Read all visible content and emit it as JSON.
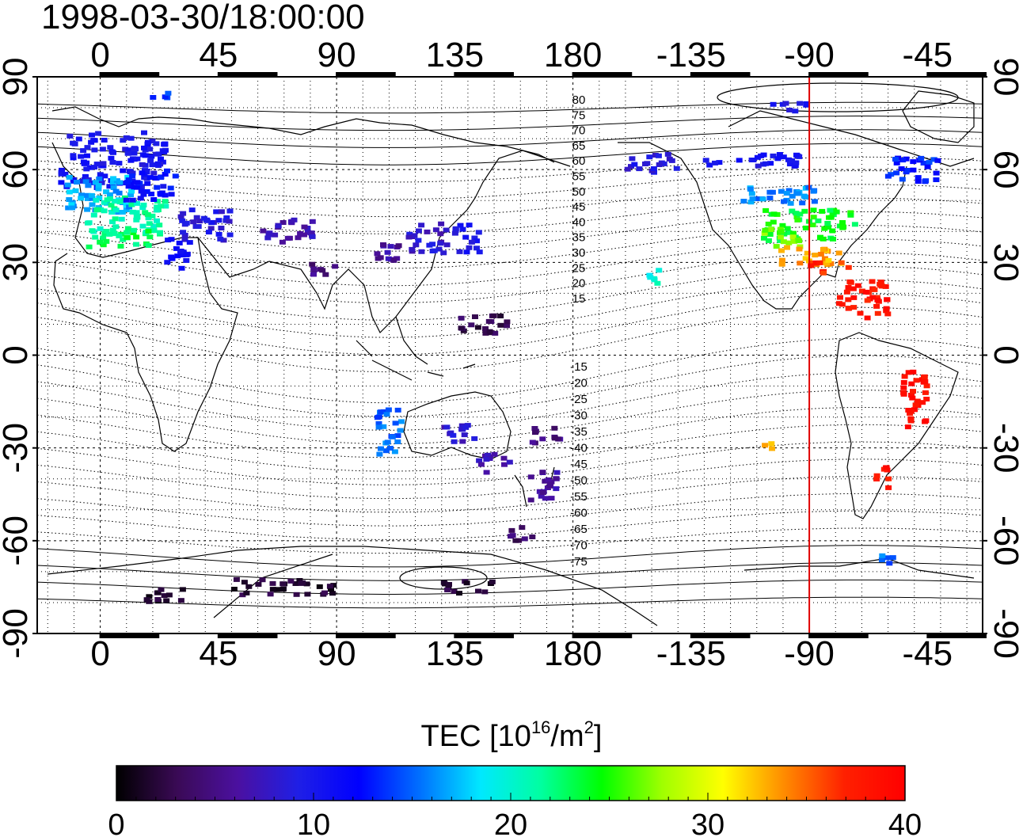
{
  "title": "1998-03-30/18:00:00",
  "chart_data": {
    "type": "heatmap",
    "title": "1998-03-30/18:00:00",
    "projection": "equirectangular, centred on 120E",
    "x_axis": {
      "top_ticks": [
        "0",
        "45",
        "90",
        "135",
        "180",
        "-135",
        "-90",
        "-45"
      ],
      "bottom_ticks": [
        "0",
        "45",
        "90",
        "135",
        "180",
        "-135",
        "-90",
        "-45"
      ],
      "lon_values": [
        0,
        45,
        90,
        135,
        180,
        225,
        270,
        315
      ],
      "range": [
        -24,
        336
      ]
    },
    "y_axis": {
      "left_ticks": [
        "90",
        "60",
        "30",
        "0",
        "-30",
        "-60",
        "-90"
      ],
      "right_ticks": [
        "90",
        "60",
        "30",
        "0",
        "-30",
        "-60",
        "-90"
      ],
      "lat_values": [
        90,
        60,
        30,
        0,
        -30,
        -60,
        -90
      ],
      "range": [
        -90,
        90
      ]
    },
    "grid": true,
    "marker_line": {
      "lon": -90,
      "color": "#e00000"
    },
    "magnetic_contour_labels": {
      "north": [
        "80",
        "75",
        "70",
        "65",
        "60",
        "55",
        "50",
        "45",
        "40",
        "35",
        "30",
        "25",
        "20",
        "15"
      ],
      "south": [
        "-15",
        "-20",
        "-25",
        "-30",
        "-35",
        "-40",
        "-45",
        "-50",
        "-55",
        "-60",
        "-65",
        "-70",
        "-75"
      ]
    },
    "colorbar": {
      "label_main": "TEC  [10",
      "label_exp1": "16",
      "label_mid": "/m",
      "label_exp2": "2",
      "label_end": "]",
      "min": 0,
      "max": 40,
      "ticks": [
        "0",
        "10",
        "20",
        "30",
        "40"
      ],
      "colors": [
        "#000000",
        "#3a0a55",
        "#4b10a0",
        "#1f1fe6",
        "#0000ff",
        "#0070ff",
        "#00e8ff",
        "#00ffa0",
        "#00ff00",
        "#a0ff00",
        "#ffff00",
        "#ff8c00",
        "#ff2000",
        "#ff0000"
      ]
    },
    "tec_regions": [
      {
        "lon": 5,
        "lat": 63,
        "w": 40,
        "h": 18,
        "tec": 10
      },
      {
        "lon": 0,
        "lat": 52,
        "w": 25,
        "h": 12,
        "tec": 17
      },
      {
        "lon": 10,
        "lat": 45,
        "w": 30,
        "h": 12,
        "tec": 21
      },
      {
        "lon": 8,
        "lat": 38,
        "w": 25,
        "h": 6,
        "tec": 23
      },
      {
        "lon": 20,
        "lat": 55,
        "w": 20,
        "h": 10,
        "tec": 12
      },
      {
        "lon": 40,
        "lat": 42,
        "w": 20,
        "h": 10,
        "tec": 9
      },
      {
        "lon": 30,
        "lat": 33,
        "w": 10,
        "h": 10,
        "tec": 11
      },
      {
        "lon": 72,
        "lat": 40,
        "w": 20,
        "h": 8,
        "tec": 7
      },
      {
        "lon": 110,
        "lat": 32,
        "w": 10,
        "h": 8,
        "tec": 6
      },
      {
        "lon": 125,
        "lat": 38,
        "w": 15,
        "h": 10,
        "tec": 8
      },
      {
        "lon": 140,
        "lat": 38,
        "w": 10,
        "h": 10,
        "tec": 10
      },
      {
        "lon": 85,
        "lat": 28,
        "w": 12,
        "h": 4,
        "tec": 5
      },
      {
        "lon": 110,
        "lat": -25,
        "w": 10,
        "h": 15,
        "tec": 15
      },
      {
        "lon": 135,
        "lat": -25,
        "w": 15,
        "h": 6,
        "tec": 8
      },
      {
        "lon": 150,
        "lat": -35,
        "w": 12,
        "h": 6,
        "tec": 7
      },
      {
        "lon": 170,
        "lat": -42,
        "w": 12,
        "h": 10,
        "tec": 6
      },
      {
        "lon": 160,
        "lat": -58,
        "w": 10,
        "h": 5,
        "tec": 4
      },
      {
        "lon": 170,
        "lat": -26,
        "w": 12,
        "h": 6,
        "tec": 5
      },
      {
        "lon": 145,
        "lat": 10,
        "w": 20,
        "h": 6,
        "tec": 3
      },
      {
        "lon": 140,
        "lat": -75,
        "w": 20,
        "h": 4,
        "tec": 2
      },
      {
        "lon": 70,
        "lat": -75,
        "w": 40,
        "h": 5,
        "tec": 2
      },
      {
        "lon": 25,
        "lat": -78,
        "w": 15,
        "h": 5,
        "tec": 2
      },
      {
        "lon": 250,
        "lat": 63,
        "w": 40,
        "h": 4,
        "tec": 10
      },
      {
        "lon": 210,
        "lat": 62,
        "w": 20,
        "h": 6,
        "tec": 9
      },
      {
        "lon": 260,
        "lat": 52,
        "w": 30,
        "h": 6,
        "tec": 16
      },
      {
        "lon": 270,
        "lat": 42,
        "w": 35,
        "h": 10,
        "tec": 24
      },
      {
        "lon": 260,
        "lat": 38,
        "w": 15,
        "h": 6,
        "tec": 27
      },
      {
        "lon": 270,
        "lat": 32,
        "w": 25,
        "h": 6,
        "tec": 33
      },
      {
        "lon": 278,
        "lat": 28,
        "w": 15,
        "h": 4,
        "tec": 37
      },
      {
        "lon": 290,
        "lat": 18,
        "w": 20,
        "h": 12,
        "tec": 38
      },
      {
        "lon": 310,
        "lat": -15,
        "w": 10,
        "h": 20,
        "tec": 39
      },
      {
        "lon": 298,
        "lat": -40,
        "w": 6,
        "h": 8,
        "tec": 38
      },
      {
        "lon": 300,
        "lat": -66,
        "w": 10,
        "h": 3,
        "tec": 15
      },
      {
        "lon": 210,
        "lat": 25,
        "w": 6,
        "h": 6,
        "tec": 20
      },
      {
        "lon": 255,
        "lat": -30,
        "w": 4,
        "h": 4,
        "tec": 32
      },
      {
        "lon": 310,
        "lat": 60,
        "w": 20,
        "h": 8,
        "tec": 13
      },
      {
        "lon": 262,
        "lat": 80,
        "w": 15,
        "h": 3,
        "tec": 10
      },
      {
        "lon": 20,
        "lat": 84,
        "w": 12,
        "h": 2,
        "tec": 14
      }
    ]
  }
}
